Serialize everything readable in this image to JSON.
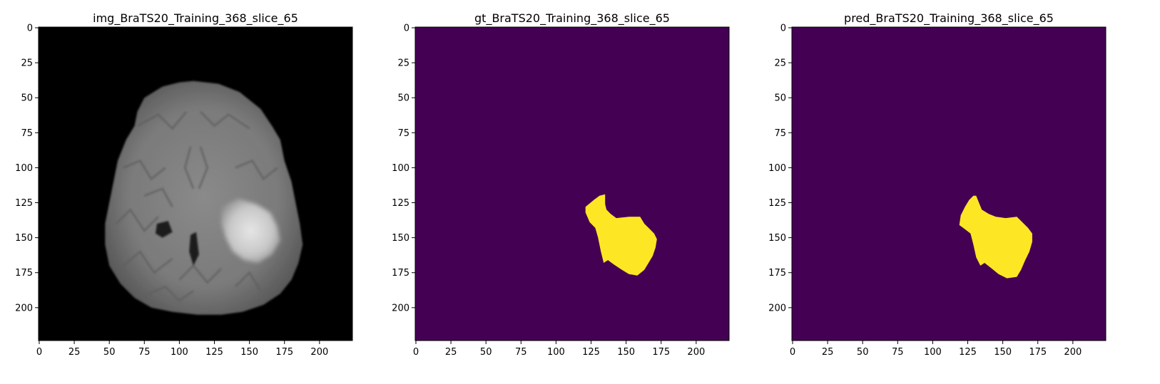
{
  "figure": {
    "panels": [
      {
        "key": "img",
        "title": "img_BraTS20_Training_368_slice_65",
        "kind": "mri",
        "colors": {
          "background": "#000000"
        }
      },
      {
        "key": "gt",
        "title": "gt_BraTS20_Training_368_slice_65",
        "kind": "mask",
        "colors": {
          "background": "#440154",
          "foreground": "#fde725"
        },
        "region_outline": [
          [
            135,
            119
          ],
          [
            135,
            126
          ],
          [
            136,
            130
          ],
          [
            139,
            133
          ],
          [
            143,
            136
          ],
          [
            152,
            135
          ],
          [
            160,
            135
          ],
          [
            163,
            140
          ],
          [
            167,
            144
          ],
          [
            170,
            147
          ],
          [
            172,
            151
          ],
          [
            171,
            157
          ],
          [
            169,
            163
          ],
          [
            166,
            168
          ],
          [
            163,
            173
          ],
          [
            158,
            177
          ],
          [
            152,
            176
          ],
          [
            147,
            173
          ],
          [
            141,
            169
          ],
          [
            137,
            166
          ],
          [
            134,
            168
          ],
          [
            132,
            160
          ],
          [
            130,
            150
          ],
          [
            128,
            143
          ],
          [
            124,
            139
          ],
          [
            121,
            132
          ],
          [
            121,
            128
          ],
          [
            127,
            123
          ],
          [
            131,
            120
          ]
        ]
      },
      {
        "key": "pred",
        "title": "pred_BraTS20_Training_368_slice_65",
        "kind": "mask",
        "colors": {
          "background": "#440154",
          "foreground": "#fde725"
        },
        "region_outline": [
          [
            131,
            120
          ],
          [
            133,
            125
          ],
          [
            135,
            130
          ],
          [
            140,
            133
          ],
          [
            145,
            135
          ],
          [
            152,
            136
          ],
          [
            160,
            135
          ],
          [
            164,
            139
          ],
          [
            168,
            143
          ],
          [
            171,
            147
          ],
          [
            171,
            153
          ],
          [
            169,
            160
          ],
          [
            166,
            166
          ],
          [
            163,
            173
          ],
          [
            160,
            178
          ],
          [
            153,
            179
          ],
          [
            147,
            176
          ],
          [
            142,
            172
          ],
          [
            137,
            168
          ],
          [
            134,
            170
          ],
          [
            131,
            164
          ],
          [
            129,
            155
          ],
          [
            127,
            147
          ],
          [
            123,
            144
          ],
          [
            119,
            141
          ],
          [
            120,
            134
          ],
          [
            123,
            128
          ],
          [
            126,
            123
          ],
          [
            129,
            120
          ]
        ]
      }
    ],
    "axes": {
      "x_ticks": [
        "0",
        "25",
        "50",
        "75",
        "100",
        "125",
        "150",
        "175",
        "200"
      ],
      "y_ticks": [
        "0",
        "25",
        "50",
        "75",
        "100",
        "125",
        "150",
        "175",
        "200"
      ],
      "x_range": [
        -0.5,
        223.5
      ],
      "y_range": [
        -0.5,
        223.5
      ]
    }
  }
}
